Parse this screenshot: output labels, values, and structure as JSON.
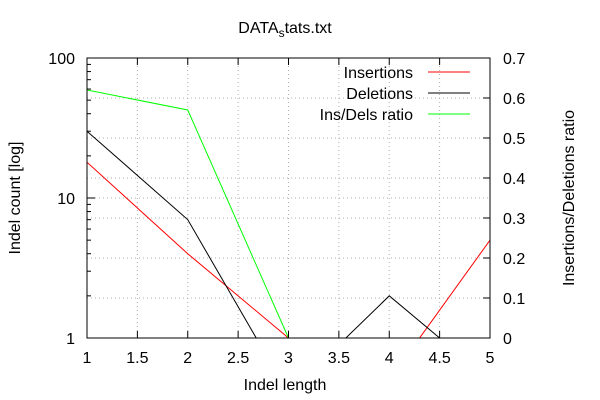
{
  "chart_data": {
    "type": "line",
    "title": "DATA",
    "title_sub": "s",
    "title_suffix": "tats.txt",
    "xlabel": "Indel length",
    "ylabel": "Indel count [log]",
    "y2label": "Insertions/Deletions ratio",
    "xlim": [
      1,
      5
    ],
    "ylim": [
      1,
      100
    ],
    "y_scale": "log",
    "y2lim": [
      0,
      0.7
    ],
    "grid": true,
    "legend_position": "top-right",
    "x_ticks": [
      "1",
      "1.5",
      "2",
      "2.5",
      "3",
      "3.5",
      "4",
      "4.5",
      "5"
    ],
    "y_ticks": [
      "1",
      "10",
      "100"
    ],
    "y2_ticks": [
      "0",
      "0.1",
      "0.2",
      "0.3",
      "0.4",
      "0.5",
      "0.6",
      "0.7"
    ],
    "series": [
      {
        "name": "Insertions",
        "color": "#ff0000",
        "axis": "y",
        "x": [
          1,
          2,
          3,
          4,
          5
        ],
        "values": [
          18,
          4,
          1,
          0.5,
          5
        ]
      },
      {
        "name": "Deletions",
        "color": "#000000",
        "axis": "y",
        "x": [
          1,
          2,
          3,
          4,
          5
        ],
        "values": [
          30,
          7,
          0.4,
          2,
          0.5
        ]
      },
      {
        "name": "Ins/Dels ratio",
        "color": "#00ff00",
        "axis": "y2",
        "x": [
          1,
          2,
          3
        ],
        "values": [
          0.62,
          0.57,
          0
        ]
      }
    ]
  }
}
